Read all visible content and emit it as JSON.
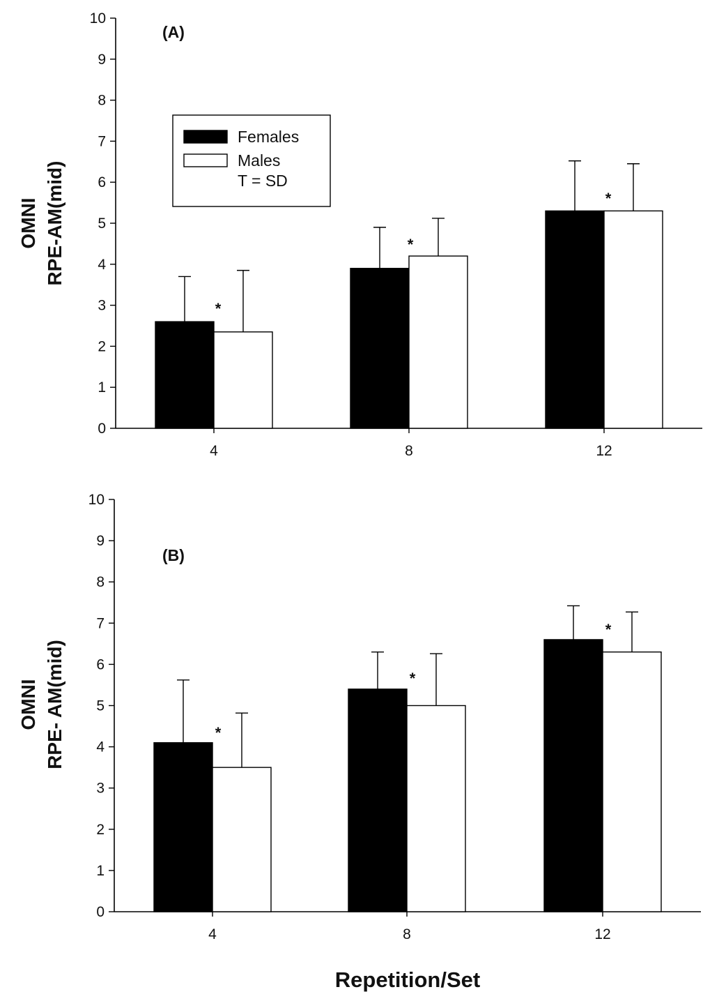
{
  "chart_data": [
    {
      "type": "bar",
      "panel_label": "(A)",
      "ylabel": [
        "OMNI",
        "RPE-AM(mid)"
      ],
      "xlabel": "",
      "ylim": [
        0,
        10
      ],
      "yticks": [
        "0",
        "1",
        "2",
        "3",
        "4",
        "5",
        "6",
        "7",
        "8",
        "9",
        "10"
      ],
      "categories": [
        "4",
        "8",
        "12"
      ],
      "series": [
        {
          "name": "Females",
          "values": [
            2.6,
            3.9,
            5.3
          ],
          "sd": [
            1.1,
            1.0,
            1.22
          ],
          "color": "#000000"
        },
        {
          "name": "Males",
          "values": [
            2.35,
            4.2,
            5.3
          ],
          "sd": [
            1.5,
            0.92,
            1.15
          ],
          "color": "#ffffff"
        }
      ],
      "annotations": [
        "*",
        "*",
        "*"
      ],
      "legend": {
        "placement": "top-left",
        "entries": [
          "Females",
          "Males"
        ],
        "note": "T = SD"
      }
    },
    {
      "type": "bar",
      "panel_label": "(B)",
      "ylabel": [
        "OMNI",
        "RPE- AM(mid)"
      ],
      "xlabel": "Repetition/Set",
      "ylim": [
        0,
        10
      ],
      "yticks": [
        "0",
        "1",
        "2",
        "3",
        "4",
        "5",
        "6",
        "7",
        "8",
        "9",
        "10"
      ],
      "categories": [
        "4",
        "8",
        "12"
      ],
      "series": [
        {
          "name": "Females",
          "values": [
            4.1,
            5.4,
            6.6
          ],
          "sd": [
            1.52,
            0.9,
            0.82
          ],
          "color": "#000000"
        },
        {
          "name": "Males",
          "values": [
            3.5,
            5.0,
            6.3
          ],
          "sd": [
            1.32,
            1.26,
            0.97
          ],
          "color": "#ffffff"
        }
      ],
      "annotations": [
        "*",
        "*",
        "*"
      ]
    }
  ]
}
